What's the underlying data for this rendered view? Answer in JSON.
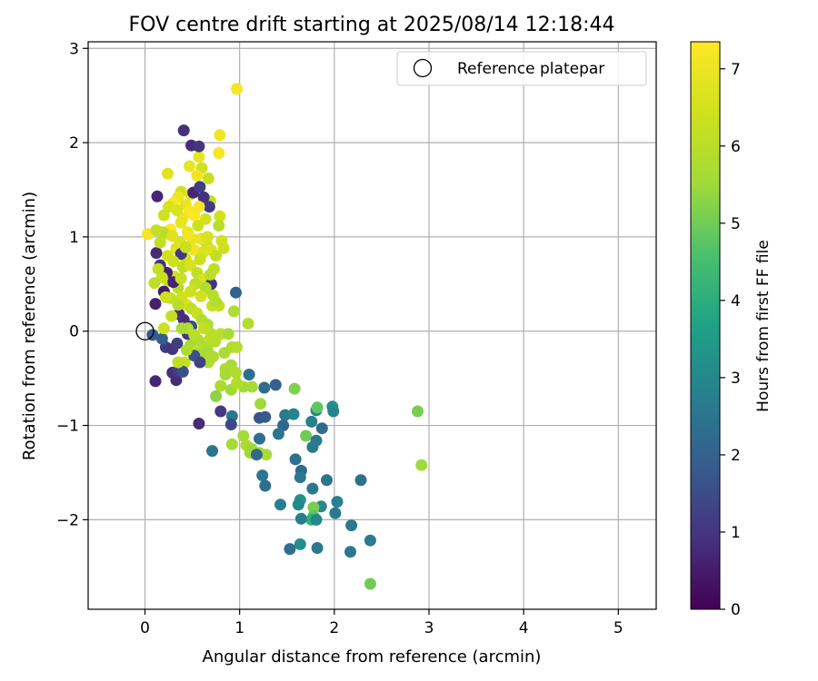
{
  "chart_data": {
    "type": "scatter",
    "title": "FOV centre drift starting at 2025/08/14 12:18:44",
    "xlabel": "Angular distance from reference (arcmin)",
    "ylabel": "Rotation from reference (arcmin)",
    "xlim": [
      -0.6,
      5.4
    ],
    "ylim": [
      -2.95,
      3.07
    ],
    "xticks": [
      0,
      1,
      2,
      3,
      4,
      5
    ],
    "yticks": [
      -2,
      -1,
      0,
      1,
      2,
      3
    ],
    "xtick_labels": [
      "0",
      "1",
      "2",
      "3",
      "4",
      "5"
    ],
    "ytick_labels": [
      "−2",
      "−1",
      "0",
      "1",
      "2",
      "3"
    ],
    "grid": true,
    "legend": {
      "placement": "top-right",
      "entries": [
        "Reference platepar"
      ]
    },
    "reference_point": {
      "label": "Reference platepar",
      "x": 0,
      "y": 0
    },
    "colorbar": {
      "label": "Hours from first FF file",
      "colormap": "viridis",
      "range": [
        0,
        7.35
      ],
      "ticks": [
        0,
        1,
        2,
        3,
        4,
        5,
        6,
        7
      ],
      "tick_labels": [
        "0",
        "1",
        "2",
        "3",
        "4",
        "5",
        "6",
        "7"
      ]
    },
    "points": [
      [
        0.97,
        2.57,
        7.2
      ],
      [
        0.79,
        2.08,
        7.1
      ],
      [
        0.78,
        1.89,
        7.2
      ],
      [
        0.57,
        1.85,
        6.9
      ],
      [
        0.6,
        1.73,
        6.5
      ],
      [
        0.47,
        1.75,
        6.9
      ],
      [
        0.67,
        1.62,
        6.3
      ],
      [
        0.55,
        1.65,
        7.1
      ],
      [
        0.24,
        1.67,
        6.8
      ],
      [
        0.38,
        1.48,
        6.5
      ],
      [
        0.48,
        1.45,
        6.8
      ],
      [
        0.35,
        1.42,
        7.0
      ],
      [
        0.3,
        1.36,
        7.2
      ],
      [
        0.43,
        1.34,
        6.9
      ],
      [
        0.47,
        1.27,
        7.2
      ],
      [
        0.4,
        1.2,
        7.0
      ],
      [
        0.25,
        1.32,
        6.6
      ],
      [
        0.2,
        1.23,
        6.4
      ],
      [
        0.27,
        1.08,
        7.3
      ],
      [
        0.22,
        1.03,
        6.8
      ],
      [
        0.19,
        1.05,
        6.0
      ],
      [
        0.03,
        1.03,
        7.2
      ],
      [
        0.12,
        1.07,
        6.2
      ],
      [
        0.56,
        1.12,
        6.4
      ],
      [
        0.45,
        1.05,
        7.0
      ],
      [
        0.5,
        0.98,
        6.9
      ],
      [
        0.37,
        0.94,
        6.6
      ],
      [
        0.33,
        0.88,
        6.8
      ],
      [
        0.52,
        0.86,
        7.1
      ],
      [
        0.62,
        0.84,
        6.6
      ],
      [
        0.58,
        0.76,
        6.3
      ],
      [
        0.65,
        0.93,
        6.4
      ],
      [
        0.7,
        0.86,
        6.7
      ],
      [
        0.75,
        0.8,
        6.2
      ],
      [
        0.81,
        0.96,
        6.5
      ],
      [
        0.83,
        0.88,
        6.4
      ],
      [
        0.79,
        1.22,
        6.5
      ],
      [
        0.69,
        1.38,
        6.2
      ],
      [
        0.78,
        1.12,
        6.0
      ],
      [
        0.43,
        0.77,
        6.4
      ],
      [
        0.4,
        0.68,
        6.1
      ],
      [
        0.48,
        0.7,
        6.6
      ],
      [
        0.55,
        0.62,
        6.2
      ],
      [
        0.62,
        0.55,
        6.6
      ],
      [
        0.67,
        0.44,
        6.3
      ],
      [
        0.72,
        0.38,
        6.0
      ],
      [
        0.78,
        0.27,
        6.2
      ],
      [
        0.94,
        0.21,
        5.8
      ],
      [
        1.09,
        0.08,
        5.9
      ],
      [
        0.25,
        0.53,
        6.2
      ],
      [
        0.31,
        0.58,
        6.5
      ],
      [
        0.35,
        0.46,
        6.0
      ],
      [
        0.39,
        0.36,
        6.4
      ],
      [
        0.44,
        0.28,
        6.6
      ],
      [
        0.49,
        0.24,
        6.1
      ],
      [
        0.55,
        0.19,
        6.3
      ],
      [
        0.6,
        0.12,
        5.9
      ],
      [
        0.66,
        0.07,
        5.8
      ],
      [
        0.7,
        -0.03,
        6.0
      ],
      [
        0.74,
        -0.11,
        5.9
      ],
      [
        0.8,
        -0.03,
        6.0
      ],
      [
        0.88,
        -0.03,
        5.7
      ],
      [
        0.97,
        -0.17,
        5.9
      ],
      [
        0.56,
        -0.09,
        5.8
      ],
      [
        0.48,
        -0.15,
        5.7
      ],
      [
        0.52,
        -0.22,
        6.1
      ],
      [
        0.6,
        -0.24,
        5.6
      ],
      [
        0.67,
        -0.33,
        5.8
      ],
      [
        0.42,
        -0.33,
        6.3
      ],
      [
        0.85,
        -0.46,
        5.6
      ],
      [
        0.91,
        -0.36,
        5.7
      ],
      [
        0.96,
        -0.44,
        5.8
      ],
      [
        0.91,
        -0.62,
        5.5
      ],
      [
        0.8,
        -0.58,
        5.7
      ],
      [
        0.75,
        -0.69,
        5.3
      ],
      [
        1.04,
        -0.59,
        5.6
      ],
      [
        1.13,
        -0.59,
        5.6
      ],
      [
        1.22,
        -0.77,
        5.5
      ],
      [
        1.26,
        -0.6,
        2.2
      ],
      [
        1.1,
        -0.46,
        2.3
      ],
      [
        1.38,
        -0.57,
        2.0
      ],
      [
        1.58,
        -0.61,
        5.2
      ],
      [
        1.21,
        -0.92,
        1.7
      ],
      [
        1.27,
        -0.91,
        1.8
      ],
      [
        0.92,
        -0.9,
        2.5
      ],
      [
        0.91,
        -0.99,
        1.4
      ],
      [
        0.92,
        -1.2,
        5.6
      ],
      [
        1.04,
        -1.11,
        5.6
      ],
      [
        1.07,
        -1.21,
        5.8
      ],
      [
        1.13,
        -1.25,
        5.5
      ],
      [
        1.11,
        -1.29,
        5.5
      ],
      [
        1.21,
        -1.29,
        5.6
      ],
      [
        1.28,
        -1.31,
        5.7
      ],
      [
        1.21,
        -1.14,
        2.3
      ],
      [
        1.18,
        -1.31,
        2.1
      ],
      [
        1.48,
        -0.89,
        2.6
      ],
      [
        1.57,
        -0.88,
        2.9
      ],
      [
        1.46,
        -1.0,
        2.1
      ],
      [
        1.41,
        -1.09,
        2.5
      ],
      [
        1.7,
        -1.11,
        5.0
      ],
      [
        1.76,
        -0.96,
        2.8
      ],
      [
        1.81,
        -0.84,
        3.0
      ],
      [
        1.82,
        -0.81,
        4.8
      ],
      [
        1.98,
        -0.8,
        3.2
      ],
      [
        1.99,
        -0.85,
        2.9
      ],
      [
        1.87,
        -1.03,
        2.2
      ],
      [
        1.81,
        -1.16,
        2.6
      ],
      [
        1.77,
        -1.23,
        2.6
      ],
      [
        1.59,
        -1.36,
        2.4
      ],
      [
        1.65,
        -1.48,
        2.2
      ],
      [
        1.64,
        -1.55,
        2.6
      ],
      [
        1.77,
        -1.67,
        2.6
      ],
      [
        1.92,
        -1.58,
        2.5
      ],
      [
        2.28,
        -1.58,
        2.4
      ],
      [
        2.03,
        -1.81,
        2.8
      ],
      [
        2.01,
        -1.93,
        2.6
      ],
      [
        1.86,
        -1.86,
        3.0
      ],
      [
        1.78,
        -1.87,
        5.1
      ],
      [
        1.78,
        -1.96,
        4.8
      ],
      [
        1.76,
        -2.0,
        4.1
      ],
      [
        1.81,
        -2.0,
        3.0
      ],
      [
        1.64,
        -1.79,
        3.3
      ],
      [
        1.62,
        -1.84,
        3.0
      ],
      [
        1.43,
        -1.84,
        2.8
      ],
      [
        1.65,
        -1.99,
        2.7
      ],
      [
        2.18,
        -2.06,
        2.6
      ],
      [
        2.38,
        -2.22,
        2.7
      ],
      [
        2.17,
        -2.34,
        2.6
      ],
      [
        1.64,
        -2.26,
        3.2
      ],
      [
        1.53,
        -2.31,
        2.3
      ],
      [
        1.82,
        -2.3,
        2.6
      ],
      [
        2.38,
        -2.68,
        5.0
      ],
      [
        2.88,
        -0.85,
        5.1
      ],
      [
        2.92,
        -1.42,
        5.5
      ],
      [
        1.24,
        -1.53,
        2.5
      ],
      [
        1.27,
        -1.64,
        2.3
      ],
      [
        0.71,
        -1.27,
        2.5
      ],
      [
        0.8,
        -0.85,
        1.1
      ],
      [
        0.57,
        -0.98,
        0.8
      ],
      [
        0.11,
        -0.53,
        0.7
      ],
      [
        0.33,
        -0.52,
        0.8
      ],
      [
        0.29,
        -0.44,
        0.9
      ],
      [
        0.36,
        -0.41,
        1.3
      ],
      [
        0.4,
        -0.43,
        1.6
      ],
      [
        0.22,
        -0.17,
        1.1
      ],
      [
        0.29,
        -0.19,
        0.9
      ],
      [
        0.34,
        -0.13,
        1.2
      ],
      [
        0.08,
        -0.04,
        1.8
      ],
      [
        0.18,
        -0.08,
        1.9
      ],
      [
        0.52,
        -0.26,
        1.6
      ],
      [
        0.58,
        -0.33,
        1.3
      ],
      [
        0.45,
        -0.03,
        1.0
      ],
      [
        0.49,
        0.05,
        1.5
      ],
      [
        0.41,
        0.12,
        0.8
      ],
      [
        0.36,
        0.18,
        0.9
      ],
      [
        0.11,
        0.29,
        0.6
      ],
      [
        0.2,
        0.42,
        0.5
      ],
      [
        0.3,
        0.52,
        0.7
      ],
      [
        0.23,
        0.62,
        0.6
      ],
      [
        0.16,
        0.7,
        0.9
      ],
      [
        0.12,
        0.83,
        0.8
      ],
      [
        0.38,
        0.82,
        1.1
      ],
      [
        0.51,
        1.47,
        0.7
      ],
      [
        0.58,
        1.53,
        1.2
      ],
      [
        0.13,
        1.43,
        0.7
      ],
      [
        0.41,
        2.13,
        0.9
      ],
      [
        0.49,
        1.97,
        0.8
      ],
      [
        0.57,
        1.96,
        1.0
      ],
      [
        0.62,
        1.42,
        0.9
      ],
      [
        0.68,
        1.32,
        1.1
      ],
      [
        0.96,
        0.41,
        2.0
      ],
      [
        0.7,
        0.5,
        1.0
      ],
      [
        0.45,
        0.03,
        5.9
      ],
      [
        0.62,
        0.03,
        6.2
      ],
      [
        0.52,
        -0.04,
        6.0
      ],
      [
        0.39,
        0.03,
        5.7
      ],
      [
        0.27,
        0.35,
        6.2
      ],
      [
        0.18,
        0.57,
        6.3
      ],
      [
        0.16,
        0.94,
        6.2
      ],
      [
        0.22,
        0.36,
        6.4
      ],
      [
        0.85,
        -0.4,
        5.7
      ],
      [
        0.97,
        -0.55,
        5.9
      ],
      [
        0.59,
        0.98,
        6.9
      ],
      [
        0.46,
        1.02,
        7.1
      ],
      [
        0.66,
        1.0,
        6.6
      ],
      [
        0.52,
        1.23,
        7.3
      ],
      [
        0.57,
        1.32,
        7.2
      ],
      [
        0.64,
        1.19,
        6.5
      ],
      [
        0.34,
        1.28,
        6.6
      ],
      [
        0.38,
        1.15,
        6.9
      ],
      [
        0.29,
        1.01,
        6.7
      ],
      [
        0.43,
        0.89,
        6.3
      ],
      [
        0.53,
        0.5,
        6.1
      ],
      [
        0.64,
        0.46,
        5.9
      ],
      [
        0.59,
        0.37,
        6.5
      ],
      [
        0.71,
        0.27,
        6.3
      ],
      [
        0.75,
        0.31,
        5.9
      ],
      [
        0.48,
        0.42,
        6.4
      ],
      [
        0.35,
        0.28,
        6.0
      ],
      [
        0.28,
        0.16,
        6.2
      ],
      [
        0.2,
        0.03,
        6.4
      ],
      [
        0.61,
        -0.15,
        5.8
      ],
      [
        0.66,
        -0.2,
        5.7
      ],
      [
        0.44,
        -0.2,
        5.8
      ],
      [
        0.35,
        -0.33,
        6.1
      ],
      [
        0.92,
        -0.17,
        5.9
      ],
      [
        0.72,
        -0.27,
        5.8
      ],
      [
        0.68,
        -0.09,
        6.0
      ],
      [
        0.84,
        -0.23,
        5.7
      ],
      [
        0.69,
        0.6,
        6.0
      ],
      [
        0.73,
        0.66,
        6.1
      ],
      [
        0.24,
        0.8,
        6.5
      ],
      [
        0.3,
        0.74,
        6.4
      ],
      [
        0.14,
        0.66,
        6.2
      ],
      [
        0.1,
        0.51,
        6.1
      ],
      [
        0.38,
        0.56,
        6.3
      ]
    ]
  }
}
